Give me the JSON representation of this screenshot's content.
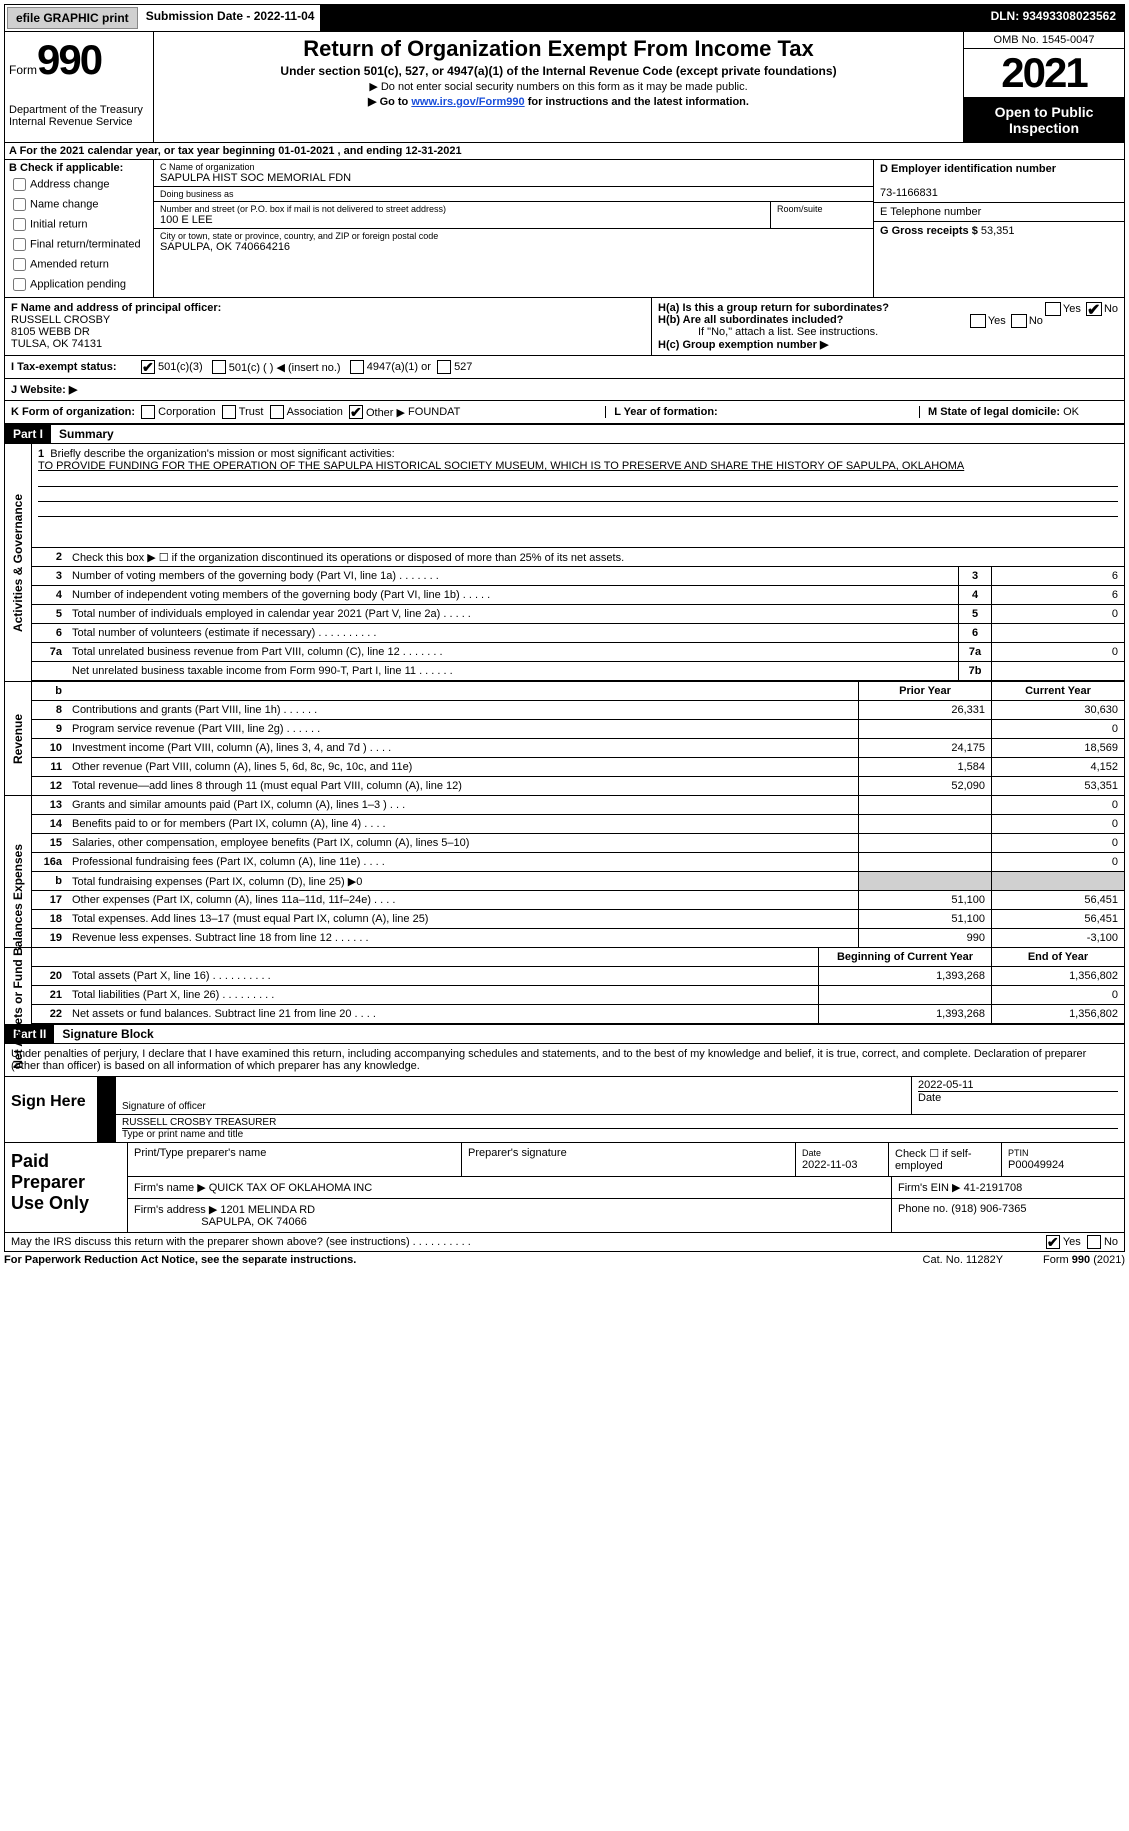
{
  "topbar": {
    "efile": "efile GRAPHIC print",
    "submission_label": "Submission Date - ",
    "submission_date": "2022-11-04",
    "dln_label": "DLN: ",
    "dln": "93493308023562"
  },
  "header": {
    "form_word": "Form",
    "form_num": "990",
    "dept": "Department of the Treasury\nInternal Revenue Service",
    "title": "Return of Organization Exempt From Income Tax",
    "sub": "Under section 501(c), 527, or 4947(a)(1) of the Internal Revenue Code (except private foundations)",
    "note1": "▶ Do not enter social security numbers on this form as it may be made public.",
    "note2_pre": "▶ Go to ",
    "note2_link": "www.irs.gov/Form990",
    "note2_post": " for instructions and the latest information.",
    "omb": "OMB No. 1545-0047",
    "year": "2021",
    "open_pub": "Open to Public Inspection"
  },
  "period": "A For the 2021 calendar year, or tax year beginning 01-01-2021   , and ending 12-31-2021",
  "boxB": {
    "label": "B Check if applicable:",
    "opts": [
      "Address change",
      "Name change",
      "Initial return",
      "Final return/terminated",
      "Amended return",
      "Application pending"
    ]
  },
  "boxC": {
    "name_label": "C Name of organization",
    "name": "SAPULPA HIST SOC MEMORIAL FDN",
    "dba_label": "Doing business as",
    "dba": "",
    "addr_label": "Number and street (or P.O. box if mail is not delivered to street address)",
    "room_label": "Room/suite",
    "addr": "100 E LEE",
    "city_label": "City or town, state or province, country, and ZIP or foreign postal code",
    "city": "SAPULPA, OK  740664216"
  },
  "boxD": {
    "label": "D Employer identification number",
    "value": "73-1166831"
  },
  "boxE": {
    "label": "E Telephone number",
    "value": ""
  },
  "boxG": {
    "label": "G Gross receipts $",
    "value": "53,351"
  },
  "boxF": {
    "label": "F Name and address of principal officer:",
    "name": "RUSSELL CROSBY",
    "addr1": "8105 WEBB DR",
    "addr2": "TULSA, OK  74131"
  },
  "boxH": {
    "ha": "H(a)  Is this a group return for subordinates?",
    "hb": "H(b)  Are all subordinates included?",
    "hb_note": "If \"No,\" attach a list. See instructions.",
    "hc": "H(c)  Group exemption number ▶",
    "yes": "Yes",
    "no": "No"
  },
  "rowI": {
    "label": "I   Tax-exempt status:",
    "o1": "501(c)(3)",
    "o2": "501(c) (   ) ◀ (insert no.)",
    "o3": "4947(a)(1) or",
    "o4": "527"
  },
  "rowJ": {
    "label": "J   Website: ▶"
  },
  "rowK": {
    "label": "K Form of organization:",
    "opts": [
      "Corporation",
      "Trust",
      "Association",
      "Other ▶"
    ],
    "other_val": "FOUNDAT",
    "L_label": "L Year of formation:",
    "L_val": "",
    "M_label": "M State of legal domicile:",
    "M_val": "OK"
  },
  "part1": {
    "tag": "Part I",
    "title": "Summary",
    "side_act": "Activities & Governance",
    "side_rev": "Revenue",
    "side_exp": "Expenses",
    "side_net": "Net Assets or Fund Balances",
    "line1_label": "Briefly describe the organization's mission or most significant activities:",
    "line1_text": "TO PROVIDE FUNDING FOR THE OPERATION OF THE SAPULPA HISTORICAL SOCIETY MUSEUM, WHICH IS TO PRESERVE AND SHARE THE HISTORY OF SAPULPA, OKLAHOMA",
    "line2": "Check this box ▶ ☐  if the organization discontinued its operations or disposed of more than 25% of its net assets.",
    "lines_gov": [
      {
        "n": "3",
        "t": "Number of voting members of the governing body (Part VI, line 1a)   .    .    .    .    .    .    .",
        "box": "3",
        "v": "6"
      },
      {
        "n": "4",
        "t": "Number of independent voting members of the governing body (Part VI, line 1b)   .    .    .    .    .",
        "box": "4",
        "v": "6"
      },
      {
        "n": "5",
        "t": "Total number of individuals employed in calendar year 2021 (Part V, line 2a)   .    .    .    .    .",
        "box": "5",
        "v": "0"
      },
      {
        "n": "6",
        "t": "Total number of volunteers (estimate if necessary)   .    .    .    .    .    .    .    .    .    .",
        "box": "6",
        "v": ""
      },
      {
        "n": "7a",
        "t": "Total unrelated business revenue from Part VIII, column (C), line 12   .    .    .    .    .    .    .",
        "box": "7a",
        "v": "0"
      },
      {
        "n": "",
        "t": "Net unrelated business taxable income from Form 990-T, Part I, line 11   .    .    .    .    .    .",
        "box": "7b",
        "v": ""
      }
    ],
    "col_prior": "Prior Year",
    "col_curr": "Current Year",
    "rev": [
      {
        "n": "8",
        "t": "Contributions and grants (Part VIII, line 1h)   .    .    .    .    .    .",
        "p": "26,331",
        "c": "30,630"
      },
      {
        "n": "9",
        "t": "Program service revenue (Part VIII, line 2g)   .    .    .    .    .    .",
        "p": "",
        "c": "0"
      },
      {
        "n": "10",
        "t": "Investment income (Part VIII, column (A), lines 3, 4, and 7d )   .    .    .    .",
        "p": "24,175",
        "c": "18,569"
      },
      {
        "n": "11",
        "t": "Other revenue (Part VIII, column (A), lines 5, 6d, 8c, 9c, 10c, and 11e)",
        "p": "1,584",
        "c": "4,152"
      },
      {
        "n": "12",
        "t": "Total revenue—add lines 8 through 11 (must equal Part VIII, column (A), line 12)",
        "p": "52,090",
        "c": "53,351"
      }
    ],
    "exp": [
      {
        "n": "13",
        "t": "Grants and similar amounts paid (Part IX, column (A), lines 1–3 )   .    .    .",
        "p": "",
        "c": "0"
      },
      {
        "n": "14",
        "t": "Benefits paid to or for members (Part IX, column (A), line 4)   .    .    .    .",
        "p": "",
        "c": "0"
      },
      {
        "n": "15",
        "t": "Salaries, other compensation, employee benefits (Part IX, column (A), lines 5–10)",
        "p": "",
        "c": "0"
      },
      {
        "n": "16a",
        "t": "Professional fundraising fees (Part IX, column (A), line 11e)   .    .    .    .",
        "p": "",
        "c": "0"
      },
      {
        "n": "b",
        "t": "Total fundraising expenses (Part IX, column (D), line 25) ▶0",
        "p": "SHADE",
        "c": "SHADE"
      },
      {
        "n": "17",
        "t": "Other expenses (Part IX, column (A), lines 11a–11d, 11f–24e)   .    .    .    .",
        "p": "51,100",
        "c": "56,451"
      },
      {
        "n": "18",
        "t": "Total expenses. Add lines 13–17 (must equal Part IX, column (A), line 25)",
        "p": "51,100",
        "c": "56,451"
      },
      {
        "n": "19",
        "t": "Revenue less expenses. Subtract line 18 from line 12   .    .    .    .    .    .",
        "p": "990",
        "c": "-3,100"
      }
    ],
    "col_begin": "Beginning of Current Year",
    "col_end": "End of Year",
    "net": [
      {
        "n": "20",
        "t": "Total assets (Part X, line 16)   .    .    .    .    .    .    .    .    .    .",
        "p": "1,393,268",
        "c": "1,356,802"
      },
      {
        "n": "21",
        "t": "Total liabilities (Part X, line 26)   .    .    .    .    .    .    .    .    .",
        "p": "",
        "c": "0"
      },
      {
        "n": "22",
        "t": "Net assets or fund balances. Subtract line 21 from line 20   .    .    .    .",
        "p": "1,393,268",
        "c": "1,356,802"
      }
    ]
  },
  "part2": {
    "tag": "Part II",
    "title": "Signature Block",
    "intro": "Under penalties of perjury, I declare that I have examined this return, including accompanying schedules and statements, and to the best of my knowledge and belief, it is true, correct, and complete. Declaration of preparer (other than officer) is based on all information of which preparer has any knowledge.",
    "sign_here": "Sign Here",
    "sig_officer_label": "Signature of officer",
    "sig_date": "2022-05-11",
    "sig_date_label": "Date",
    "sig_name": "RUSSELL CROSBY  TREASURER",
    "sig_name_label": "Type or print name and title"
  },
  "prep": {
    "label": "Paid Preparer Use Only",
    "r1_a": "Print/Type preparer's name",
    "r1_b": "Preparer's signature",
    "r1_c_label": "Date",
    "r1_c": "2022-11-03",
    "r1_d_label": "Check ☐ if self-employed",
    "r1_e_label": "PTIN",
    "r1_e": "P00049924",
    "r2_a_label": "Firm's name    ▶",
    "r2_a": "QUICK TAX OF OKLAHOMA INC",
    "r2_b_label": "Firm's EIN ▶",
    "r2_b": "41-2191708",
    "r3_a_label": "Firm's address ▶",
    "r3_a": "1201 MELINDA RD",
    "r3_a2": "SAPULPA, OK  74066",
    "r3_b_label": "Phone no.",
    "r3_b": "(918) 906-7365"
  },
  "footer": {
    "discuss": "May the IRS discuss this return with the preparer shown above? (see instructions)   .    .    .    .    .    .    .    .    .    .",
    "yes": "Yes",
    "no": "No",
    "pra": "For Paperwork Reduction Act Notice, see the separate instructions.",
    "cat": "Cat. No. 11282Y",
    "form": "Form 990 (2021)"
  }
}
